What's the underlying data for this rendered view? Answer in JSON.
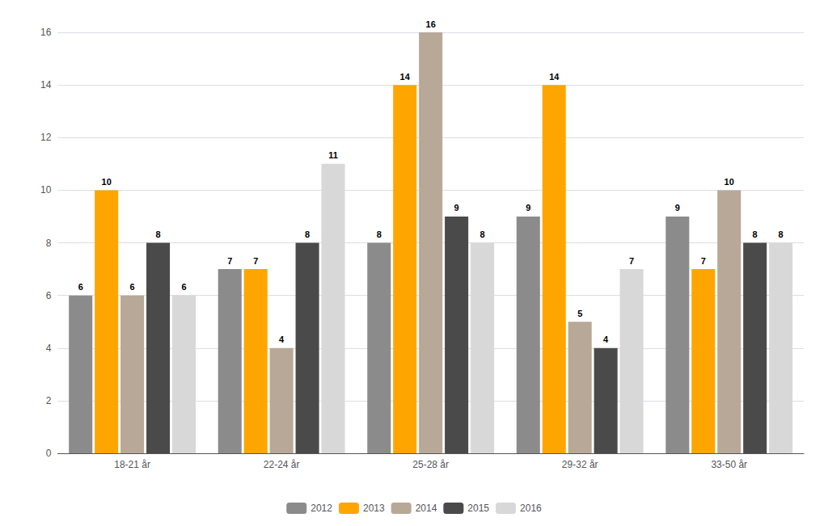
{
  "chart_data": {
    "type": "bar",
    "categories": [
      "18-21 år",
      "22-24 år",
      "25-28 år",
      "29-32 år",
      "33-50 år"
    ],
    "series": [
      {
        "name": "2012",
        "color": "#8B8B8B",
        "values": [
          6,
          7,
          8,
          9,
          9
        ]
      },
      {
        "name": "2013",
        "color": "#FFA500",
        "values": [
          10,
          7,
          14,
          14,
          7
        ]
      },
      {
        "name": "2014",
        "color": "#B8A898",
        "values": [
          6,
          4,
          16,
          5,
          10
        ]
      },
      {
        "name": "2015",
        "color": "#4A4A4A",
        "values": [
          8,
          8,
          9,
          4,
          8
        ]
      },
      {
        "name": "2016",
        "color": "#D8D8D8",
        "values": [
          6,
          11,
          8,
          7,
          8
        ]
      }
    ],
    "ylim": [
      0,
      16
    ],
    "yticks": [
      0,
      2,
      4,
      6,
      8,
      10,
      12,
      14,
      16
    ],
    "grid": true,
    "legend": "bottom",
    "data_labels": true
  }
}
